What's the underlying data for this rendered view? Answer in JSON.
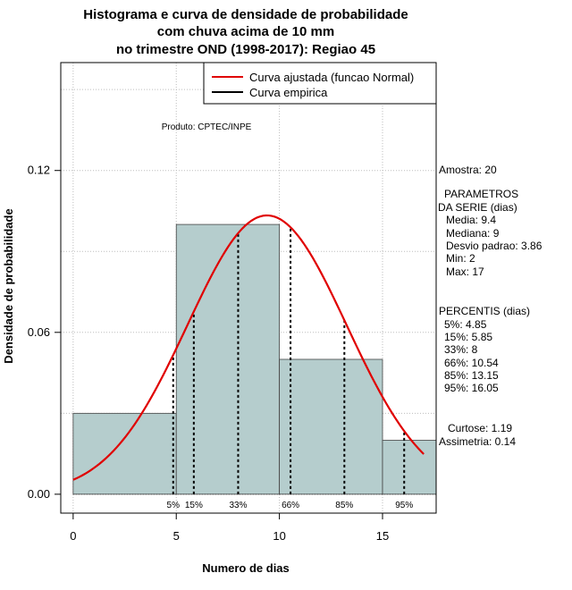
{
  "chart_data": {
    "type": "histogram",
    "title_lines": [
      "Histograma e curva de densidade de probabilidade",
      "com chuva acima de 10 mm",
      "no trimestre OND (1998-2017): Regiao 45"
    ],
    "xlabel": "Numero de dias",
    "ylabel": "Densidade de probabilidade",
    "xlim": [
      -0.6,
      17.6
    ],
    "ylim": [
      -0.007,
      0.16
    ],
    "x_ticks": [
      0,
      5,
      10,
      15
    ],
    "y_ticks": [
      0.0,
      0.06,
      0.12
    ],
    "y_tick_labels": [
      "0.00",
      "0.06",
      "0.12"
    ],
    "grid": true,
    "bins": [
      {
        "x0": 0,
        "x1": 5,
        "density": 0.03
      },
      {
        "x0": 5,
        "x1": 10,
        "density": 0.1
      },
      {
        "x0": 10,
        "x1": 15,
        "density": 0.05
      },
      {
        "x0": 15,
        "x1": 17.6,
        "density": 0.02
      }
    ],
    "normal_fit": {
      "mean": 9.4,
      "sd": 3.86,
      "x_from": 0,
      "x_to": 17
    },
    "bar_color": "#b5cdcd",
    "curve_color": "#e00000",
    "percentile_color": "#000000",
    "percentiles": [
      {
        "label": "5%",
        "value": 4.85
      },
      {
        "label": "15%",
        "value": 5.85
      },
      {
        "label": "33%",
        "value": 8
      },
      {
        "label": "66%",
        "value": 10.54
      },
      {
        "label": "85%",
        "value": 13.15
      },
      {
        "label": "95%",
        "value": 16.05
      }
    ],
    "legend": {
      "position": "top-right",
      "entries": [
        {
          "label": "Curva ajustada (funcao Normal)",
          "color": "#e00000"
        },
        {
          "label": "Curva empirica",
          "color": "#000000"
        }
      ]
    },
    "credit": "Produto: CPTEC/INPE"
  },
  "stats_panel": {
    "amostra": "Amostra: 20",
    "param_header_1": "PARAMETROS",
    "param_header_2": "DA SERIE (dias)",
    "params": [
      "Media: 9.4",
      "Mediana: 9",
      "Desvio padrao: 3.86",
      "Min: 2",
      "Max: 17"
    ],
    "pct_header": "PERCENTIS (dias)",
    "pcts": [
      "5%: 4.85",
      "15%: 5.85",
      "33%: 8",
      "66%: 10.54",
      "85%: 13.15",
      "95%: 16.05"
    ],
    "curtose": "Curtose: 1.19",
    "assimetria": "Assimetria: 0.14"
  }
}
